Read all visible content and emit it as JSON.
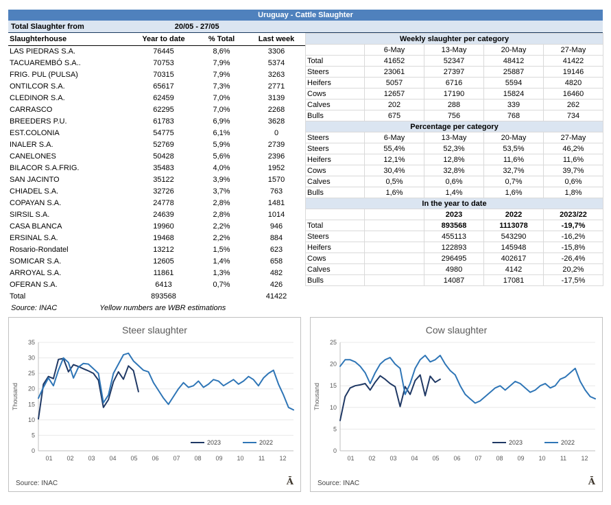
{
  "title": "Uruguay - Cattle Slaughter",
  "period": {
    "label": "Total Slaughter from",
    "value": "20/05 - 27/05"
  },
  "left_table": {
    "headers": [
      "Slaughterhouse",
      "Year to date",
      "% Total",
      "Last week"
    ],
    "rows": [
      [
        "LAS PIEDRAS S.A.",
        "76445",
        "8,6%",
        "3306"
      ],
      [
        "TACUAREMBÓ S.A..",
        "70753",
        "7,9%",
        "5374"
      ],
      [
        "FRIG. PUL (PULSA)",
        "70315",
        "7,9%",
        "3263"
      ],
      [
        "ONTILCOR S.A.",
        "65617",
        "7,3%",
        "2771"
      ],
      [
        "CLEDINOR S.A.",
        "62459",
        "7,0%",
        "3139"
      ],
      [
        "CARRASCO",
        "62295",
        "7,0%",
        "2268"
      ],
      [
        "BREEDERS P.U.",
        "61783",
        "6,9%",
        "3628"
      ],
      [
        "EST.COLONIA",
        "54775",
        "6,1%",
        "0"
      ],
      [
        "INALER S.A.",
        "52769",
        "5,9%",
        "2739"
      ],
      [
        "CANELONES",
        "50428",
        "5,6%",
        "2396"
      ],
      [
        "BILACOR S.A.FRIG.",
        "35483",
        "4,0%",
        "1952"
      ],
      [
        "SAN JACINTO",
        "35122",
        "3,9%",
        "1570"
      ],
      [
        "CHIADEL S.A.",
        "32726",
        "3,7%",
        "763"
      ],
      [
        "COPAYAN S.A.",
        "24778",
        "2,8%",
        "1481"
      ],
      [
        "SIRSIL S.A.",
        "24639",
        "2,8%",
        "1014"
      ],
      [
        "CASA BLANCA",
        "19960",
        "2,2%",
        "946"
      ],
      [
        "ERSINAL S.A.",
        "19468",
        "2,2%",
        "884"
      ],
      [
        "Rosario-Rondatel",
        "13212",
        "1,5%",
        "623"
      ],
      [
        "SOMICAR S.A.",
        "12605",
        "1,4%",
        "658"
      ],
      [
        "ARROYAL S.A.",
        "11861",
        "1,3%",
        "482"
      ],
      [
        "OFERAN S.A.",
        "6413",
        "0,7%",
        "426"
      ]
    ],
    "total_row": [
      "Total",
      "893568",
      "",
      "41422"
    ],
    "source": "Source: INAC",
    "note": "Yellow numbers are WBR estimations"
  },
  "right_sections": [
    {
      "title": "Weekly slaughter per category",
      "header": [
        "",
        "6-May",
        "13-May",
        "20-May",
        "27-May"
      ],
      "header_bold": false,
      "first_row_bold": false,
      "rows": [
        [
          "Total",
          "41652",
          "52347",
          "48412",
          "41422"
        ],
        [
          "Steers",
          "23061",
          "27397",
          "25887",
          "19146"
        ],
        [
          "Heifers",
          "5057",
          "6716",
          "5594",
          "4820"
        ],
        [
          "Cows",
          "12657",
          "17190",
          "15824",
          "16460"
        ],
        [
          "Calves",
          "202",
          "288",
          "339",
          "262"
        ],
        [
          "Bulls",
          "675",
          "756",
          "768",
          "734"
        ]
      ]
    },
    {
      "title": "Percentage per category",
      "header": [
        "Steers",
        "6-May",
        "13-May",
        "20-May",
        "27-May"
      ],
      "header_bold": false,
      "first_row_bold": false,
      "rows": [
        [
          "Steers",
          "55,4%",
          "52,3%",
          "53,5%",
          "46,2%"
        ],
        [
          "Heifers",
          "12,1%",
          "12,8%",
          "11,6%",
          "11,6%"
        ],
        [
          "Cows",
          "30,4%",
          "32,8%",
          "32,7%",
          "39,7%"
        ],
        [
          "Calves",
          "0,5%",
          "0,6%",
          "0,7%",
          "0,6%"
        ],
        [
          "Bulls",
          "1,6%",
          "1,4%",
          "1,6%",
          "1,8%"
        ]
      ]
    },
    {
      "title": "In the year to date",
      "header": [
        "",
        "",
        "2023",
        "2022",
        "2023/22"
      ],
      "header_bold": true,
      "first_row_bold": true,
      "rows": [
        [
          "Total",
          "",
          "893568",
          "1113078",
          "-19,7%"
        ],
        [
          "Steers",
          "",
          "455113",
          "543290",
          "-16,2%"
        ],
        [
          "Heifers",
          "",
          "122893",
          "145948",
          "-15,8%"
        ],
        [
          "Cows",
          "",
          "296495",
          "402617",
          "-26,4%"
        ],
        [
          "Calves",
          "",
          "4980",
          "4142",
          "20,2%"
        ],
        [
          "Bulls",
          "",
          "14087",
          "17081",
          "-17,5%"
        ]
      ]
    }
  ],
  "chart_data": [
    {
      "type": "line",
      "title": "Steer slaughter",
      "xlabel": "",
      "ylabel": "Thousand",
      "ylim": [
        0,
        35
      ],
      "yticks": [
        0,
        5,
        10,
        15,
        20,
        25,
        30,
        35
      ],
      "x_labels": [
        "01",
        "02",
        "03",
        "04",
        "05",
        "06",
        "07",
        "08",
        "09",
        "10",
        "11",
        "12"
      ],
      "weeks": 52,
      "grid": true,
      "legend_position": "bottom-right",
      "source": "Source: INAC",
      "logo": "Ā",
      "series": [
        {
          "name": "2023",
          "color": "#1f3864",
          "values": [
            10.3,
            21.5,
            24,
            23.3,
            29.5,
            29.8,
            25.5,
            27.8,
            27.2,
            26.5,
            25.8,
            25,
            22.8,
            14,
            16.5,
            22.3,
            25.5,
            23.1,
            27.4,
            25.9,
            19.1
          ]
        },
        {
          "name": "2022",
          "color": "#2e75b6",
          "values": [
            17,
            20.5,
            23.5,
            21,
            26,
            30,
            28.5,
            23.5,
            27,
            28.2,
            28,
            26.5,
            25,
            15.5,
            18,
            25,
            28,
            31,
            31.5,
            29,
            27.5,
            26,
            25.5,
            22,
            19.5,
            17,
            15,
            17.5,
            20,
            22,
            20.5,
            21,
            22.5,
            20.5,
            21.5,
            23,
            22.5,
            21,
            22,
            23,
            21.5,
            22.5,
            24,
            23,
            21,
            23.5,
            25,
            26,
            21.5,
            18,
            14,
            13.2
          ]
        }
      ]
    },
    {
      "type": "line",
      "title": "Cow slaughter",
      "xlabel": "",
      "ylabel": "Thousand",
      "ylim": [
        0,
        25
      ],
      "yticks": [
        0,
        5,
        10,
        15,
        20,
        25
      ],
      "x_labels": [
        "01",
        "02",
        "03",
        "04",
        "05",
        "06",
        "07",
        "08",
        "09",
        "10",
        "11",
        "12"
      ],
      "weeks": 52,
      "grid": true,
      "legend_position": "bottom-right",
      "source": "Source: INAC",
      "logo": "Ā",
      "series": [
        {
          "name": "2023",
          "color": "#1f3864",
          "values": [
            7,
            12.5,
            14.5,
            15,
            15.2,
            15.5,
            14,
            15.8,
            17.3,
            16.5,
            15.5,
            14.8,
            10.2,
            14.8,
            13,
            16.2,
            17.5,
            12.7,
            17.2,
            15.8,
            16.5
          ]
        },
        {
          "name": "2022",
          "color": "#2e75b6",
          "values": [
            19.5,
            21,
            21,
            20.5,
            19.5,
            18,
            15.5,
            18,
            20,
            21,
            21.5,
            20,
            19,
            13,
            15.5,
            19,
            21,
            22,
            20.5,
            21,
            22,
            20,
            18.5,
            17.5,
            15,
            13,
            12,
            11,
            11.5,
            12.5,
            13.5,
            14.5,
            15,
            14,
            15,
            16,
            15.5,
            14.5,
            13.5,
            14,
            15,
            15.5,
            14.5,
            15,
            16.5,
            17,
            18,
            19,
            16,
            14,
            12.5,
            12
          ]
        }
      ]
    }
  ]
}
